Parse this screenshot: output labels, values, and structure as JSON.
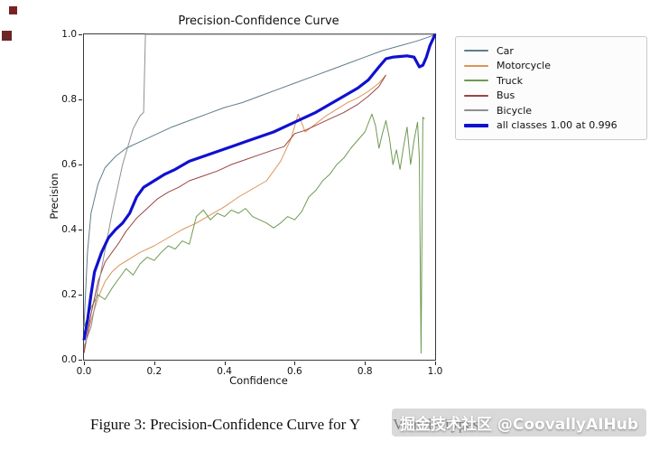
{
  "chart_data": {
    "type": "line",
    "title": "Precision-Confidence Curve",
    "xlabel": "Confidence",
    "ylabel": "Precision",
    "xlim": [
      0,
      1.0
    ],
    "ylim": [
      0,
      1.0
    ],
    "x_ticks": [
      "0.0",
      "0.2",
      "0.4",
      "0.6",
      "0.8",
      "1.0"
    ],
    "y_ticks": [
      "0.0",
      "0.2",
      "0.4",
      "0.6",
      "0.8",
      "1.0"
    ],
    "grid": false,
    "legend_position": "outside upper right",
    "series": [
      {
        "name": "Car",
        "color": "#5f7d8c",
        "lw": 1,
        "points": [
          [
            0,
            0.1
          ],
          [
            0.01,
            0.33
          ],
          [
            0.02,
            0.45
          ],
          [
            0.04,
            0.54
          ],
          [
            0.06,
            0.59
          ],
          [
            0.09,
            0.625
          ],
          [
            0.12,
            0.65
          ],
          [
            0.16,
            0.67
          ],
          [
            0.2,
            0.69
          ],
          [
            0.25,
            0.715
          ],
          [
            0.3,
            0.735
          ],
          [
            0.35,
            0.755
          ],
          [
            0.4,
            0.775
          ],
          [
            0.45,
            0.79
          ],
          [
            0.5,
            0.81
          ],
          [
            0.55,
            0.83
          ],
          [
            0.6,
            0.85
          ],
          [
            0.65,
            0.87
          ],
          [
            0.7,
            0.89
          ],
          [
            0.75,
            0.91
          ],
          [
            0.8,
            0.93
          ],
          [
            0.85,
            0.95
          ],
          [
            0.9,
            0.965
          ],
          [
            0.95,
            0.98
          ],
          [
            0.99,
            0.995
          ],
          [
            1.0,
            1.0
          ]
        ]
      },
      {
        "name": "Motorcycle",
        "color": "#dd9356",
        "lw": 1,
        "points": [
          [
            0,
            0.03
          ],
          [
            0.02,
            0.12
          ],
          [
            0.04,
            0.19
          ],
          [
            0.06,
            0.24
          ],
          [
            0.08,
            0.27
          ],
          [
            0.1,
            0.29
          ],
          [
            0.13,
            0.31
          ],
          [
            0.16,
            0.33
          ],
          [
            0.2,
            0.35
          ],
          [
            0.24,
            0.375
          ],
          [
            0.28,
            0.4
          ],
          [
            0.32,
            0.42
          ],
          [
            0.36,
            0.445
          ],
          [
            0.4,
            0.47
          ],
          [
            0.44,
            0.5
          ],
          [
            0.48,
            0.525
          ],
          [
            0.52,
            0.55
          ],
          [
            0.56,
            0.61
          ],
          [
            0.59,
            0.68
          ],
          [
            0.61,
            0.755
          ],
          [
            0.63,
            0.7
          ],
          [
            0.66,
            0.725
          ],
          [
            0.69,
            0.75
          ],
          [
            0.72,
            0.77
          ],
          [
            0.75,
            0.79
          ],
          [
            0.78,
            0.805
          ],
          [
            0.81,
            0.825
          ],
          [
            0.84,
            0.85
          ],
          [
            0.86,
            0.875
          ]
        ]
      },
      {
        "name": "Truck",
        "color": "#6f9a52",
        "lw": 1,
        "points": [
          [
            0,
            0.1
          ],
          [
            0.02,
            0.16
          ],
          [
            0.04,
            0.2
          ],
          [
            0.06,
            0.185
          ],
          [
            0.08,
            0.22
          ],
          [
            0.1,
            0.25
          ],
          [
            0.12,
            0.28
          ],
          [
            0.14,
            0.26
          ],
          [
            0.16,
            0.295
          ],
          [
            0.18,
            0.315
          ],
          [
            0.2,
            0.305
          ],
          [
            0.22,
            0.33
          ],
          [
            0.24,
            0.35
          ],
          [
            0.26,
            0.34
          ],
          [
            0.28,
            0.365
          ],
          [
            0.3,
            0.355
          ],
          [
            0.32,
            0.44
          ],
          [
            0.34,
            0.46
          ],
          [
            0.36,
            0.43
          ],
          [
            0.38,
            0.45
          ],
          [
            0.4,
            0.44
          ],
          [
            0.42,
            0.46
          ],
          [
            0.44,
            0.45
          ],
          [
            0.46,
            0.465
          ],
          [
            0.48,
            0.44
          ],
          [
            0.5,
            0.43
          ],
          [
            0.52,
            0.42
          ],
          [
            0.54,
            0.405
          ],
          [
            0.56,
            0.42
          ],
          [
            0.58,
            0.44
          ],
          [
            0.6,
            0.43
          ],
          [
            0.62,
            0.455
          ],
          [
            0.64,
            0.5
          ],
          [
            0.66,
            0.52
          ],
          [
            0.68,
            0.55
          ],
          [
            0.7,
            0.57
          ],
          [
            0.72,
            0.6
          ],
          [
            0.74,
            0.62
          ],
          [
            0.76,
            0.65
          ],
          [
            0.78,
            0.675
          ],
          [
            0.8,
            0.7
          ],
          [
            0.82,
            0.755
          ],
          [
            0.83,
            0.72
          ],
          [
            0.84,
            0.65
          ],
          [
            0.85,
            0.695
          ],
          [
            0.86,
            0.735
          ],
          [
            0.87,
            0.68
          ],
          [
            0.88,
            0.6
          ],
          [
            0.89,
            0.645
          ],
          [
            0.9,
            0.585
          ],
          [
            0.91,
            0.655
          ],
          [
            0.92,
            0.715
          ],
          [
            0.93,
            0.6
          ],
          [
            0.94,
            0.675
          ],
          [
            0.95,
            0.73
          ],
          [
            0.955,
            0.62
          ],
          [
            0.96,
            0.02
          ],
          [
            0.965,
            0.745
          ],
          [
            0.97,
            0.74
          ]
        ]
      },
      {
        "name": "Bus",
        "color": "#9c4343",
        "lw": 1,
        "points": [
          [
            0,
            0.02
          ],
          [
            0.02,
            0.14
          ],
          [
            0.04,
            0.24
          ],
          [
            0.06,
            0.3
          ],
          [
            0.08,
            0.33
          ],
          [
            0.1,
            0.36
          ],
          [
            0.12,
            0.395
          ],
          [
            0.15,
            0.435
          ],
          [
            0.18,
            0.465
          ],
          [
            0.21,
            0.495
          ],
          [
            0.24,
            0.515
          ],
          [
            0.27,
            0.53
          ],
          [
            0.3,
            0.55
          ],
          [
            0.34,
            0.565
          ],
          [
            0.38,
            0.58
          ],
          [
            0.42,
            0.6
          ],
          [
            0.46,
            0.615
          ],
          [
            0.5,
            0.63
          ],
          [
            0.54,
            0.645
          ],
          [
            0.57,
            0.655
          ],
          [
            0.6,
            0.695
          ],
          [
            0.63,
            0.705
          ],
          [
            0.66,
            0.72
          ],
          [
            0.7,
            0.74
          ],
          [
            0.74,
            0.76
          ],
          [
            0.78,
            0.785
          ],
          [
            0.81,
            0.81
          ],
          [
            0.84,
            0.84
          ],
          [
            0.86,
            0.875
          ]
        ]
      },
      {
        "name": "Bicycle",
        "color": "#909090",
        "lw": 1,
        "points": [
          [
            0,
            0.04
          ],
          [
            0.02,
            0.1
          ],
          [
            0.05,
            0.28
          ],
          [
            0.08,
            0.45
          ],
          [
            0.11,
            0.6
          ],
          [
            0.14,
            0.71
          ],
          [
            0.16,
            0.75
          ],
          [
            0.17,
            0.76
          ],
          [
            0.175,
            1.0
          ],
          [
            1.0,
            1.0
          ]
        ]
      },
      {
        "name": "all classes 1.00 at 0.996",
        "color": "#1010d0",
        "lw": 3.2,
        "points": [
          [
            0,
            0.06
          ],
          [
            0.01,
            0.12
          ],
          [
            0.02,
            0.2
          ],
          [
            0.03,
            0.27
          ],
          [
            0.05,
            0.33
          ],
          [
            0.07,
            0.375
          ],
          [
            0.09,
            0.4
          ],
          [
            0.11,
            0.42
          ],
          [
            0.13,
            0.45
          ],
          [
            0.15,
            0.5
          ],
          [
            0.17,
            0.53
          ],
          [
            0.2,
            0.55
          ],
          [
            0.23,
            0.57
          ],
          [
            0.26,
            0.585
          ],
          [
            0.3,
            0.61
          ],
          [
            0.34,
            0.625
          ],
          [
            0.38,
            0.64
          ],
          [
            0.42,
            0.655
          ],
          [
            0.46,
            0.67
          ],
          [
            0.5,
            0.685
          ],
          [
            0.54,
            0.7
          ],
          [
            0.58,
            0.72
          ],
          [
            0.62,
            0.74
          ],
          [
            0.66,
            0.76
          ],
          [
            0.7,
            0.785
          ],
          [
            0.74,
            0.81
          ],
          [
            0.78,
            0.835
          ],
          [
            0.81,
            0.86
          ],
          [
            0.84,
            0.9
          ],
          [
            0.86,
            0.925
          ],
          [
            0.88,
            0.93
          ],
          [
            0.9,
            0.932
          ],
          [
            0.92,
            0.934
          ],
          [
            0.94,
            0.93
          ],
          [
            0.955,
            0.9
          ],
          [
            0.965,
            0.905
          ],
          [
            0.975,
            0.93
          ],
          [
            0.985,
            0.965
          ],
          [
            1.0,
            1.0
          ]
        ]
      }
    ]
  },
  "caption": {
    "prefix": "Figure 3: Precision-Confidence Curve for Y",
    "obscured_tail": "Vehicle Types"
  },
  "watermark": {
    "text": "掘金技术社区 @CoovallyAIHub"
  }
}
